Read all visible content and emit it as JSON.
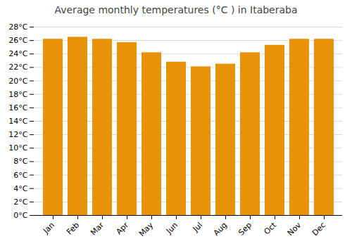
{
  "chart_data": {
    "type": "bar",
    "title": "Average monthly temperatures (°C ) in Itaberaba",
    "categories": [
      "Jan",
      "Feb",
      "Mar",
      "Apr",
      "May",
      "Jun",
      "Jul",
      "Aug",
      "Sep",
      "Oct",
      "Nov",
      "Dec"
    ],
    "values": [
      26.2,
      26.5,
      26.2,
      25.7,
      24.2,
      22.8,
      22.1,
      22.5,
      24.2,
      25.3,
      26.2,
      26.2
    ],
    "color": "#E8920A",
    "ylim": [
      0,
      28
    ],
    "yticks": [
      {
        "value": 0,
        "label": "0°C"
      },
      {
        "value": 2,
        "label": "2°C"
      },
      {
        "value": 4,
        "label": "4°C"
      },
      {
        "value": 6,
        "label": "6°C"
      },
      {
        "value": 8,
        "label": "8°C"
      },
      {
        "value": 10,
        "label": "10°C"
      },
      {
        "value": 12,
        "label": "12°C"
      },
      {
        "value": 14,
        "label": "14°C"
      },
      {
        "value": 16,
        "label": "16°C"
      },
      {
        "value": 18,
        "label": "18°C"
      },
      {
        "value": 20,
        "label": "20°C"
      },
      {
        "value": 22,
        "label": "22°C"
      },
      {
        "value": 24,
        "label": "24°C"
      },
      {
        "value": 26,
        "label": "26°C"
      },
      {
        "value": 28,
        "label": "28°C"
      }
    ],
    "grid": true
  }
}
